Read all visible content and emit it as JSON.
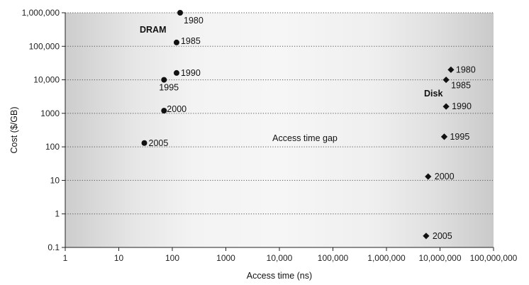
{
  "chart_data": {
    "type": "scatter",
    "title": "",
    "xlabel": "Access time (ns)",
    "ylabel": "Cost ($/GB)",
    "x_scale": "log",
    "y_scale": "log",
    "xlim": [
      1,
      100000000
    ],
    "ylim": [
      0.1,
      1000000
    ],
    "x_ticks": [
      "1",
      "10",
      "100",
      "1000",
      "10,000",
      "100,000",
      "1,000,000",
      "10,000,000",
      "100,000,000"
    ],
    "y_ticks": [
      "0.1",
      "1",
      "10",
      "100",
      "1000",
      "10,000",
      "100,000",
      "1,000,000"
    ],
    "grid": "horizontal dotted",
    "annotations": [
      {
        "text": "Access time gap",
        "x": 30000,
        "y": 150
      }
    ],
    "series": [
      {
        "name": "DRAM",
        "marker": "circle",
        "points": [
          {
            "x": 140,
            "y": 1000000,
            "label": "1980"
          },
          {
            "x": 120,
            "y": 130000,
            "label": "1985"
          },
          {
            "x": 120,
            "y": 16000,
            "label": "1990"
          },
          {
            "x": 70,
            "y": 10000,
            "label": "1995"
          },
          {
            "x": 70,
            "y": 1200,
            "label": "2000"
          },
          {
            "x": 30,
            "y": 130,
            "label": "2005"
          }
        ]
      },
      {
        "name": "Disk",
        "marker": "diamond",
        "points": [
          {
            "x": 16000000,
            "y": 20000,
            "label": "1980"
          },
          {
            "x": 13000000,
            "y": 10000,
            "label": "1985"
          },
          {
            "x": 13000000,
            "y": 1600,
            "label": "1990"
          },
          {
            "x": 12000000,
            "y": 200,
            "label": "1995"
          },
          {
            "x": 6000000,
            "y": 13,
            "label": "2000"
          },
          {
            "x": 5500000,
            "y": 0.22,
            "label": "2005"
          }
        ]
      }
    ]
  }
}
